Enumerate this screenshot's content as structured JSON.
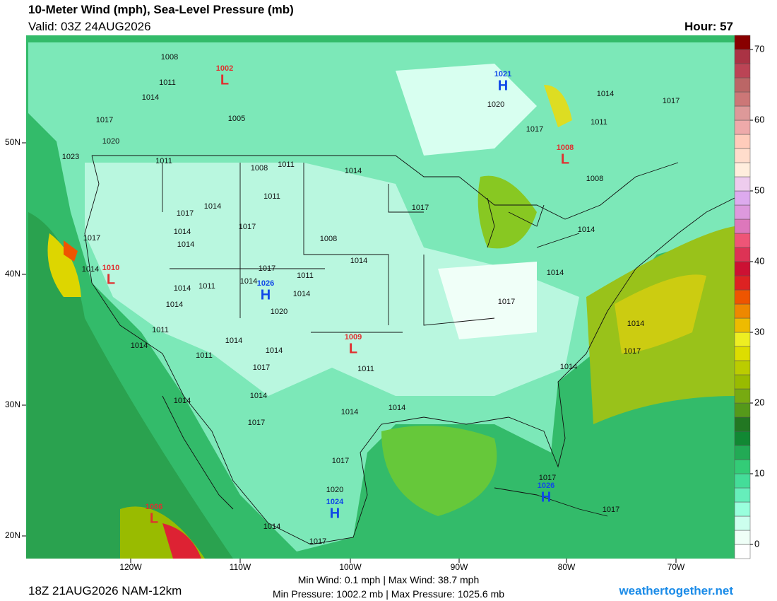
{
  "header": {
    "title": "10-Meter Wind (mph), Sea-Level Pressure (mb)",
    "valid": "Valid: 03Z 24AUG2026",
    "hour": "Hour: 57"
  },
  "map": {
    "lon_labels": [
      "120W",
      "110W",
      "100W",
      "90W",
      "80W",
      "70W"
    ],
    "lat_labels": [
      "50N",
      "40N",
      "30N",
      "20N"
    ],
    "centers": [
      {
        "letter": "L",
        "pressure": 1002
      },
      {
        "letter": "H",
        "pressure": 1021
      },
      {
        "letter": "L",
        "pressure": 1008
      },
      {
        "letter": "L",
        "pressure": 1010
      },
      {
        "letter": "H",
        "pressure": 1026
      },
      {
        "letter": "L",
        "pressure": 1009
      },
      {
        "letter": "L",
        "pressure": 1006
      },
      {
        "letter": "H",
        "pressure": 1024
      },
      {
        "letter": "H",
        "pressure": 1026
      }
    ],
    "high_color": "#1048e8",
    "low_color": "#e03030",
    "isobar_labels": [
      1008,
      1011,
      1014,
      1017,
      1020,
      1023,
      1005,
      1011,
      1008,
      1011,
      1014,
      1011,
      1014,
      1017,
      1017,
      1014,
      1014,
      1017,
      1008,
      1014,
      1017,
      1014,
      1017,
      1011,
      1014,
      1014,
      1011,
      1014,
      1014,
      1020,
      1011,
      1014,
      1014,
      1014,
      1011,
      1017,
      1011,
      1017,
      1014,
      1014,
      1008,
      1011,
      1014,
      1017,
      1017,
      1020,
      1014,
      1017,
      1014,
      1014,
      1014,
      1014,
      1014,
      1017,
      1017,
      1020,
      1014,
      1017,
      1017,
      1017
    ]
  },
  "colorbar": {
    "range": [
      -2,
      72
    ],
    "ticks": [
      0,
      10,
      20,
      30,
      40,
      50,
      60,
      70
    ],
    "colors": [
      "#ffffff",
      "#effff7",
      "#ccffee",
      "#99ffdd",
      "#66eebb",
      "#44dd99",
      "#33cc77",
      "#22aa55",
      "#118833",
      "#227722",
      "#55991a",
      "#77aa11",
      "#99bb00",
      "#bbcc00",
      "#dddd00",
      "#eeee22",
      "#eebb00",
      "#ee8800",
      "#ee5500",
      "#dd2222",
      "#cc1133",
      "#dd3355",
      "#ee5577",
      "#dd77bb",
      "#dd99dd",
      "#ddaaee",
      "#eeccee",
      "#ffeedd",
      "#ffddcc",
      "#ffccbb",
      "#eeaaaa",
      "#dd9999",
      "#cc7777",
      "#bb6666",
      "#bb4455",
      "#aa3344",
      "#880000"
    ]
  },
  "footer": {
    "run": "18Z 21AUG2026 NAM-12km",
    "wind": "Min Wind:  0.1 mph | Max Wind:  38.7 mph",
    "pressure": "Min Pressure: 1002.2 mb | Max Pressure: 1025.6 mb",
    "site": "weathertogether.net"
  }
}
